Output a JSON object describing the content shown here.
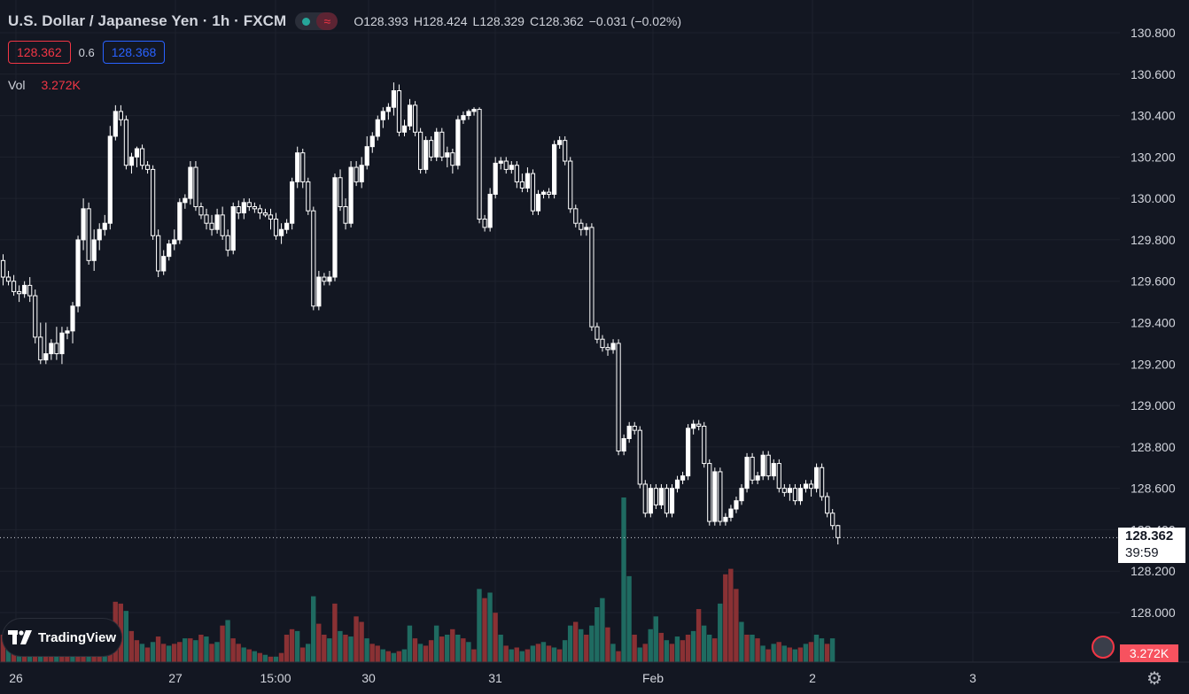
{
  "header": {
    "title": "U.S. Dollar / Japanese Yen · 1h · FXCM",
    "open_label": "O",
    "open": "128.393",
    "high_label": "H",
    "high": "128.424",
    "low_label": "L",
    "low": "128.329",
    "close_label": "C",
    "close": "128.362",
    "change": "−0.031 (−0.02%)"
  },
  "trade": {
    "sell_price": "128.362",
    "spread": "0.6",
    "buy_price": "128.368"
  },
  "volume_legend": {
    "label": "Vol",
    "value": "3.272K"
  },
  "branding": {
    "logo_text": "TradingView"
  },
  "last_price": {
    "price": "128.362",
    "countdown": "39:59"
  },
  "volume_last": "3.272K",
  "colors": {
    "background": "#131722",
    "up": "#26a69a",
    "down": "#ef5350",
    "candle": "#ffffff",
    "grid": "#1e222d"
  },
  "icons": {
    "settings": "gear-icon",
    "status": "market-status-icon",
    "flag": "us-flag-icon"
  },
  "chart_data": {
    "type": "candlestick",
    "y_ticks": [
      "130.800",
      "130.600",
      "130.400",
      "130.200",
      "130.000",
      "129.800",
      "129.600",
      "129.400",
      "129.200",
      "129.000",
      "128.800",
      "128.600",
      "128.400",
      "128.200",
      "128.000"
    ],
    "ylim": [
      127.8,
      130.9
    ],
    "x_ticks": [
      "26",
      "27",
      "15:00",
      "30",
      "31",
      "Feb",
      "2",
      "3"
    ],
    "grid": true,
    "ohlc_series": [
      [
        129.7,
        129.73,
        129.58,
        129.62
      ],
      [
        129.62,
        129.65,
        129.58,
        129.6
      ],
      [
        129.6,
        129.63,
        129.53,
        129.55
      ],
      [
        129.55,
        129.58,
        129.5,
        129.54
      ],
      [
        129.54,
        129.6,
        129.52,
        129.58
      ],
      [
        129.58,
        129.62,
        129.5,
        129.53
      ],
      [
        129.53,
        129.56,
        129.3,
        129.33
      ],
      [
        129.33,
        129.4,
        129.2,
        129.22
      ],
      [
        129.22,
        129.4,
        129.2,
        129.25
      ],
      [
        129.25,
        129.32,
        129.22,
        129.3
      ],
      [
        129.3,
        129.38,
        129.22,
        129.25
      ],
      [
        129.25,
        129.38,
        129.2,
        129.35
      ],
      [
        129.35,
        129.38,
        129.32,
        129.36
      ],
      [
        129.36,
        129.5,
        129.3,
        129.48
      ],
      [
        129.48,
        129.82,
        129.45,
        129.8
      ],
      [
        129.8,
        130.0,
        129.75,
        129.95
      ],
      [
        129.95,
        129.98,
        129.68,
        129.7
      ],
      [
        129.7,
        129.85,
        129.65,
        129.8
      ],
      [
        129.8,
        129.88,
        129.75,
        129.85
      ],
      [
        129.85,
        129.92,
        129.82,
        129.88
      ],
      [
        129.88,
        130.35,
        129.85,
        130.3
      ],
      [
        130.3,
        130.45,
        130.28,
        130.42
      ],
      [
        130.42,
        130.45,
        130.35,
        130.38
      ],
      [
        130.38,
        130.4,
        130.14,
        130.16
      ],
      [
        130.16,
        130.22,
        130.12,
        130.2
      ],
      [
        130.2,
        130.25,
        130.15,
        130.24
      ],
      [
        130.24,
        130.26,
        130.14,
        130.16
      ],
      [
        130.16,
        130.18,
        130.12,
        130.14
      ],
      [
        130.14,
        130.16,
        129.8,
        129.82
      ],
      [
        129.82,
        129.85,
        129.62,
        129.65
      ],
      [
        129.65,
        129.75,
        129.63,
        129.72
      ],
      [
        129.72,
        129.8,
        129.7,
        129.78
      ],
      [
        129.78,
        129.85,
        129.75,
        129.8
      ],
      [
        129.8,
        130.0,
        129.78,
        129.98
      ],
      [
        129.98,
        130.02,
        129.95,
        130.0
      ],
      [
        130.0,
        130.18,
        129.97,
        130.15
      ],
      [
        130.15,
        130.18,
        129.94,
        129.96
      ],
      [
        129.96,
        129.98,
        129.9,
        129.92
      ],
      [
        129.92,
        129.95,
        129.85,
        129.88
      ],
      [
        129.88,
        129.92,
        129.82,
        129.85
      ],
      [
        129.85,
        129.95,
        129.83,
        129.92
      ],
      [
        129.92,
        129.96,
        129.8,
        129.82
      ],
      [
        129.82,
        129.85,
        129.72,
        129.75
      ],
      [
        129.75,
        129.98,
        129.73,
        129.96
      ],
      [
        129.96,
        129.99,
        129.9,
        129.93
      ],
      [
        129.93,
        130.0,
        129.9,
        129.98
      ],
      [
        129.98,
        130.0,
        129.94,
        129.96
      ],
      [
        129.96,
        129.98,
        129.93,
        129.95
      ],
      [
        129.95,
        129.97,
        129.9,
        129.93
      ],
      [
        129.93,
        129.95,
        129.91,
        129.92
      ],
      [
        129.92,
        129.95,
        129.85,
        129.9
      ],
      [
        129.9,
        129.93,
        129.8,
        129.82
      ],
      [
        129.82,
        129.88,
        129.78,
        129.85
      ],
      [
        129.85,
        129.9,
        129.83,
        129.88
      ],
      [
        129.88,
        130.1,
        129.85,
        130.08
      ],
      [
        130.08,
        130.25,
        130.05,
        130.22
      ],
      [
        130.22,
        130.24,
        130.05,
        130.08
      ],
      [
        130.08,
        130.1,
        129.92,
        129.94
      ],
      [
        129.94,
        129.96,
        129.46,
        129.48
      ],
      [
        129.48,
        129.65,
        129.46,
        129.62
      ],
      [
        129.62,
        129.64,
        129.58,
        129.6
      ],
      [
        129.6,
        129.65,
        129.58,
        129.62
      ],
      [
        129.62,
        130.12,
        129.6,
        130.1
      ],
      [
        130.1,
        130.14,
        129.94,
        129.96
      ],
      [
        129.96,
        130.0,
        129.85,
        129.88
      ],
      [
        129.88,
        130.18,
        129.86,
        130.15
      ],
      [
        130.15,
        130.18,
        130.06,
        130.08
      ],
      [
        130.08,
        130.2,
        130.05,
        130.16
      ],
      [
        130.16,
        130.3,
        130.14,
        130.25
      ],
      [
        130.25,
        130.32,
        130.22,
        130.3
      ],
      [
        130.3,
        130.4,
        130.28,
        130.38
      ],
      [
        130.38,
        130.44,
        130.34,
        130.42
      ],
      [
        130.42,
        130.46,
        130.38,
        130.44
      ],
      [
        130.44,
        130.56,
        130.4,
        130.52
      ],
      [
        130.52,
        130.55,
        130.3,
        130.32
      ],
      [
        130.32,
        130.38,
        130.3,
        130.35
      ],
      [
        130.35,
        130.48,
        130.33,
        130.45
      ],
      [
        130.45,
        130.47,
        130.3,
        130.32
      ],
      [
        130.32,
        130.34,
        130.12,
        130.14
      ],
      [
        130.14,
        130.3,
        130.12,
        130.28
      ],
      [
        130.28,
        130.3,
        130.18,
        130.2
      ],
      [
        130.2,
        130.34,
        130.18,
        130.32
      ],
      [
        130.32,
        130.34,
        130.18,
        130.2
      ],
      [
        130.2,
        130.25,
        130.15,
        130.22
      ],
      [
        130.22,
        130.24,
        130.12,
        130.16
      ],
      [
        130.16,
        130.4,
        130.14,
        130.38
      ],
      [
        130.38,
        130.42,
        130.36,
        130.4
      ],
      [
        130.4,
        130.43,
        130.38,
        130.42
      ],
      [
        130.42,
        130.44,
        130.4,
        130.43
      ],
      [
        130.43,
        130.44,
        129.88,
        129.9
      ],
      [
        129.9,
        129.92,
        129.84,
        129.86
      ],
      [
        129.86,
        130.05,
        129.84,
        130.02
      ],
      [
        130.02,
        130.2,
        130.0,
        130.17
      ],
      [
        130.17,
        130.2,
        130.14,
        130.18
      ],
      [
        130.18,
        130.2,
        130.12,
        130.14
      ],
      [
        130.14,
        130.18,
        130.12,
        130.16
      ],
      [
        130.16,
        130.18,
        130.05,
        130.08
      ],
      [
        130.08,
        130.12,
        130.03,
        130.05
      ],
      [
        130.05,
        130.15,
        130.03,
        130.12
      ],
      [
        130.12,
        130.14,
        129.92,
        129.94
      ],
      [
        129.94,
        130.04,
        129.92,
        130.02
      ],
      [
        130.02,
        130.04,
        130.0,
        130.03
      ],
      [
        130.03,
        130.05,
        130.0,
        130.02
      ],
      [
        130.02,
        130.28,
        130.0,
        130.26
      ],
      [
        130.26,
        130.3,
        130.24,
        130.28
      ],
      [
        130.28,
        130.3,
        130.16,
        130.18
      ],
      [
        130.18,
        130.2,
        129.93,
        129.95
      ],
      [
        129.95,
        129.97,
        129.86,
        129.88
      ],
      [
        129.88,
        129.9,
        129.82,
        129.85
      ],
      [
        129.85,
        129.88,
        129.82,
        129.86
      ],
      [
        129.86,
        129.88,
        129.36,
        129.38
      ],
      [
        129.38,
        129.4,
        129.3,
        129.32
      ],
      [
        129.32,
        129.34,
        129.26,
        129.28
      ],
      [
        129.28,
        129.3,
        129.24,
        129.27
      ],
      [
        129.27,
        129.32,
        129.25,
        129.3
      ],
      [
        129.3,
        129.32,
        128.76,
        128.78
      ],
      [
        128.78,
        128.86,
        128.76,
        128.84
      ],
      [
        128.84,
        128.92,
        128.82,
        128.9
      ],
      [
        128.9,
        128.92,
        128.86,
        128.88
      ],
      [
        128.88,
        128.9,
        128.6,
        128.62
      ],
      [
        128.62,
        128.64,
        128.46,
        128.48
      ],
      [
        128.48,
        128.62,
        128.46,
        128.6
      ],
      [
        128.6,
        128.62,
        128.5,
        128.52
      ],
      [
        128.52,
        128.62,
        128.5,
        128.6
      ],
      [
        128.6,
        128.62,
        128.46,
        128.48
      ],
      [
        128.48,
        128.62,
        128.46,
        128.6
      ],
      [
        128.6,
        128.66,
        128.58,
        128.64
      ],
      [
        128.64,
        128.68,
        128.62,
        128.66
      ],
      [
        128.66,
        128.91,
        128.64,
        128.89
      ],
      [
        128.89,
        128.93,
        128.86,
        128.91
      ],
      [
        128.91,
        128.93,
        128.88,
        128.9
      ],
      [
        128.9,
        128.92,
        128.7,
        128.72
      ],
      [
        128.72,
        128.74,
        128.42,
        128.44
      ],
      [
        128.44,
        128.7,
        128.42,
        128.68
      ],
      [
        128.68,
        128.7,
        128.42,
        128.44
      ],
      [
        128.44,
        128.48,
        128.42,
        128.46
      ],
      [
        128.46,
        128.52,
        128.44,
        128.5
      ],
      [
        128.5,
        128.56,
        128.48,
        128.54
      ],
      [
        128.54,
        128.62,
        128.52,
        128.6
      ],
      [
        128.6,
        128.77,
        128.58,
        128.75
      ],
      [
        128.75,
        128.77,
        128.62,
        128.64
      ],
      [
        128.64,
        128.68,
        128.62,
        128.66
      ],
      [
        128.66,
        128.78,
        128.64,
        128.76
      ],
      [
        128.76,
        128.78,
        128.64,
        128.66
      ],
      [
        128.66,
        128.74,
        128.64,
        128.72
      ],
      [
        128.72,
        128.74,
        128.58,
        128.6
      ],
      [
        128.6,
        128.62,
        128.56,
        128.58
      ],
      [
        128.58,
        128.62,
        128.54,
        128.6
      ],
      [
        128.6,
        128.62,
        128.52,
        128.54
      ],
      [
        128.54,
        128.62,
        128.52,
        128.6
      ],
      [
        128.6,
        128.64,
        128.58,
        128.62
      ],
      [
        128.62,
        128.64,
        128.56,
        128.6
      ],
      [
        128.6,
        128.72,
        128.58,
        128.7
      ],
      [
        128.7,
        128.72,
        128.54,
        128.56
      ],
      [
        128.56,
        128.58,
        128.46,
        128.48
      ],
      [
        128.48,
        128.5,
        128.4,
        128.42
      ],
      [
        128.42,
        128.424,
        128.329,
        128.362
      ]
    ],
    "volume_series": [
      [
        30,
        0
      ],
      [
        22,
        1
      ],
      [
        18,
        0
      ],
      [
        18,
        1
      ],
      [
        16,
        0
      ],
      [
        20,
        1
      ],
      [
        16,
        0
      ],
      [
        15,
        1
      ],
      [
        14,
        0
      ],
      [
        12,
        0
      ],
      [
        16,
        1
      ],
      [
        14,
        0
      ],
      [
        18,
        0
      ],
      [
        20,
        1
      ],
      [
        26,
        0
      ],
      [
        32,
        0
      ],
      [
        34,
        1
      ],
      [
        28,
        0
      ],
      [
        22,
        0
      ],
      [
        30,
        1
      ],
      [
        40,
        0
      ],
      [
        66,
        0
      ],
      [
        64,
        0
      ],
      [
        56,
        1
      ],
      [
        34,
        0
      ],
      [
        24,
        0
      ],
      [
        20,
        1
      ],
      [
        16,
        0
      ],
      [
        22,
        1
      ],
      [
        28,
        0
      ],
      [
        20,
        0
      ],
      [
        18,
        1
      ],
      [
        20,
        0
      ],
      [
        22,
        0
      ],
      [
        26,
        1
      ],
      [
        26,
        0
      ],
      [
        24,
        1
      ],
      [
        30,
        0
      ],
      [
        28,
        1
      ],
      [
        20,
        0
      ],
      [
        22,
        1
      ],
      [
        40,
        0
      ],
      [
        46,
        1
      ],
      [
        26,
        0
      ],
      [
        20,
        0
      ],
      [
        16,
        1
      ],
      [
        14,
        0
      ],
      [
        12,
        1
      ],
      [
        10,
        0
      ],
      [
        8,
        1
      ],
      [
        6,
        0
      ],
      [
        6,
        1
      ],
      [
        10,
        0
      ],
      [
        30,
        0
      ],
      [
        36,
        0
      ],
      [
        34,
        1
      ],
      [
        16,
        0
      ],
      [
        20,
        1
      ],
      [
        72,
        1
      ],
      [
        42,
        0
      ],
      [
        30,
        0
      ],
      [
        26,
        1
      ],
      [
        64,
        0
      ],
      [
        34,
        1
      ],
      [
        30,
        0
      ],
      [
        28,
        1
      ],
      [
        50,
        0
      ],
      [
        44,
        0
      ],
      [
        26,
        1
      ],
      [
        20,
        0
      ],
      [
        18,
        0
      ],
      [
        14,
        1
      ],
      [
        12,
        0
      ],
      [
        10,
        1
      ],
      [
        12,
        0
      ],
      [
        14,
        1
      ],
      [
        40,
        1
      ],
      [
        26,
        0
      ],
      [
        20,
        1
      ],
      [
        18,
        0
      ],
      [
        24,
        0
      ],
      [
        40,
        1
      ],
      [
        28,
        0
      ],
      [
        30,
        1
      ],
      [
        36,
        0
      ],
      [
        30,
        1
      ],
      [
        26,
        0
      ],
      [
        22,
        1
      ],
      [
        14,
        0
      ],
      [
        80,
        1
      ],
      [
        70,
        0
      ],
      [
        76,
        1
      ],
      [
        54,
        0
      ],
      [
        30,
        1
      ],
      [
        18,
        0
      ],
      [
        14,
        1
      ],
      [
        16,
        0
      ],
      [
        12,
        1
      ],
      [
        14,
        0
      ],
      [
        18,
        1
      ],
      [
        20,
        0
      ],
      [
        22,
        1
      ],
      [
        18,
        0
      ],
      [
        16,
        1
      ],
      [
        14,
        0
      ],
      [
        24,
        1
      ],
      [
        40,
        1
      ],
      [
        44,
        0
      ],
      [
        36,
        1
      ],
      [
        30,
        0
      ],
      [
        40,
        1
      ],
      [
        60,
        1
      ],
      [
        70,
        1
      ],
      [
        38,
        0
      ],
      [
        20,
        1
      ],
      [
        12,
        0
      ],
      [
        180,
        1
      ],
      [
        94,
        1
      ],
      [
        30,
        0
      ],
      [
        16,
        1
      ],
      [
        20,
        0
      ],
      [
        36,
        1
      ],
      [
        50,
        1
      ],
      [
        32,
        0
      ],
      [
        24,
        1
      ],
      [
        20,
        0
      ],
      [
        28,
        1
      ],
      [
        24,
        0
      ],
      [
        30,
        0
      ],
      [
        34,
        1
      ],
      [
        58,
        0
      ],
      [
        40,
        1
      ],
      [
        30,
        1
      ],
      [
        26,
        0
      ],
      [
        64,
        1
      ],
      [
        96,
        0
      ],
      [
        102,
        0
      ],
      [
        80,
        0
      ],
      [
        44,
        1
      ],
      [
        30,
        0
      ],
      [
        30,
        1
      ],
      [
        26,
        0
      ],
      [
        18,
        1
      ],
      [
        14,
        0
      ],
      [
        20,
        1
      ],
      [
        22,
        0
      ],
      [
        18,
        1
      ],
      [
        16,
        0
      ],
      [
        14,
        1
      ],
      [
        16,
        0
      ],
      [
        20,
        1
      ],
      [
        22,
        0
      ],
      [
        30,
        1
      ],
      [
        26,
        1
      ],
      [
        20,
        0
      ],
      [
        26,
        1
      ]
    ]
  }
}
